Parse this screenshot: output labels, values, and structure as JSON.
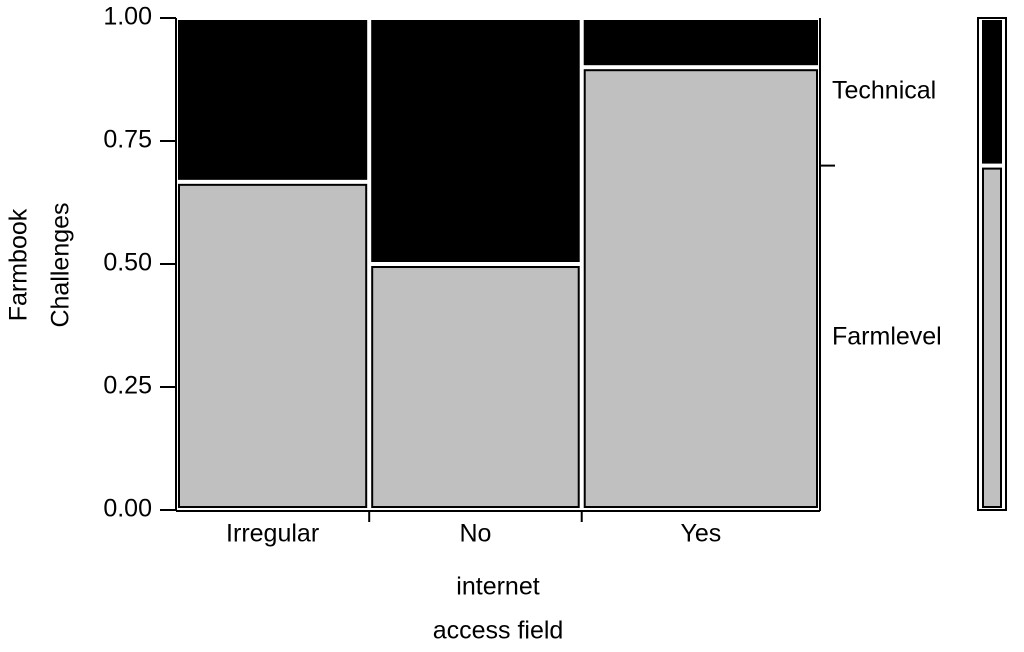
{
  "chart_data": {
    "type": "mosaic",
    "ylabel": [
      "Farmbook",
      "Challenges"
    ],
    "xlabel": [
      "internet",
      "access field"
    ],
    "categories": [
      "Irregular",
      "No",
      "Yes"
    ],
    "widths": [
      0.3,
      0.33,
      0.37
    ],
    "series": [
      {
        "name": "Farmlevel",
        "color": "#c0c0c0",
        "values": [
          0.667,
          0.5,
          0.9
        ],
        "total": 0.7
      },
      {
        "name": "Technical",
        "color": "#000000",
        "values": [
          0.333,
          0.5,
          0.1
        ],
        "total": 0.3
      }
    ],
    "ylim": [
      0,
      1
    ],
    "yticks": [
      {
        "value": 0,
        "label": "0.00"
      },
      {
        "value": 0.25,
        "label": "0.25"
      },
      {
        "value": 0.5,
        "label": "0.50"
      },
      {
        "value": 0.75,
        "label": "0.75"
      },
      {
        "value": 1,
        "label": "1.00"
      }
    ]
  }
}
